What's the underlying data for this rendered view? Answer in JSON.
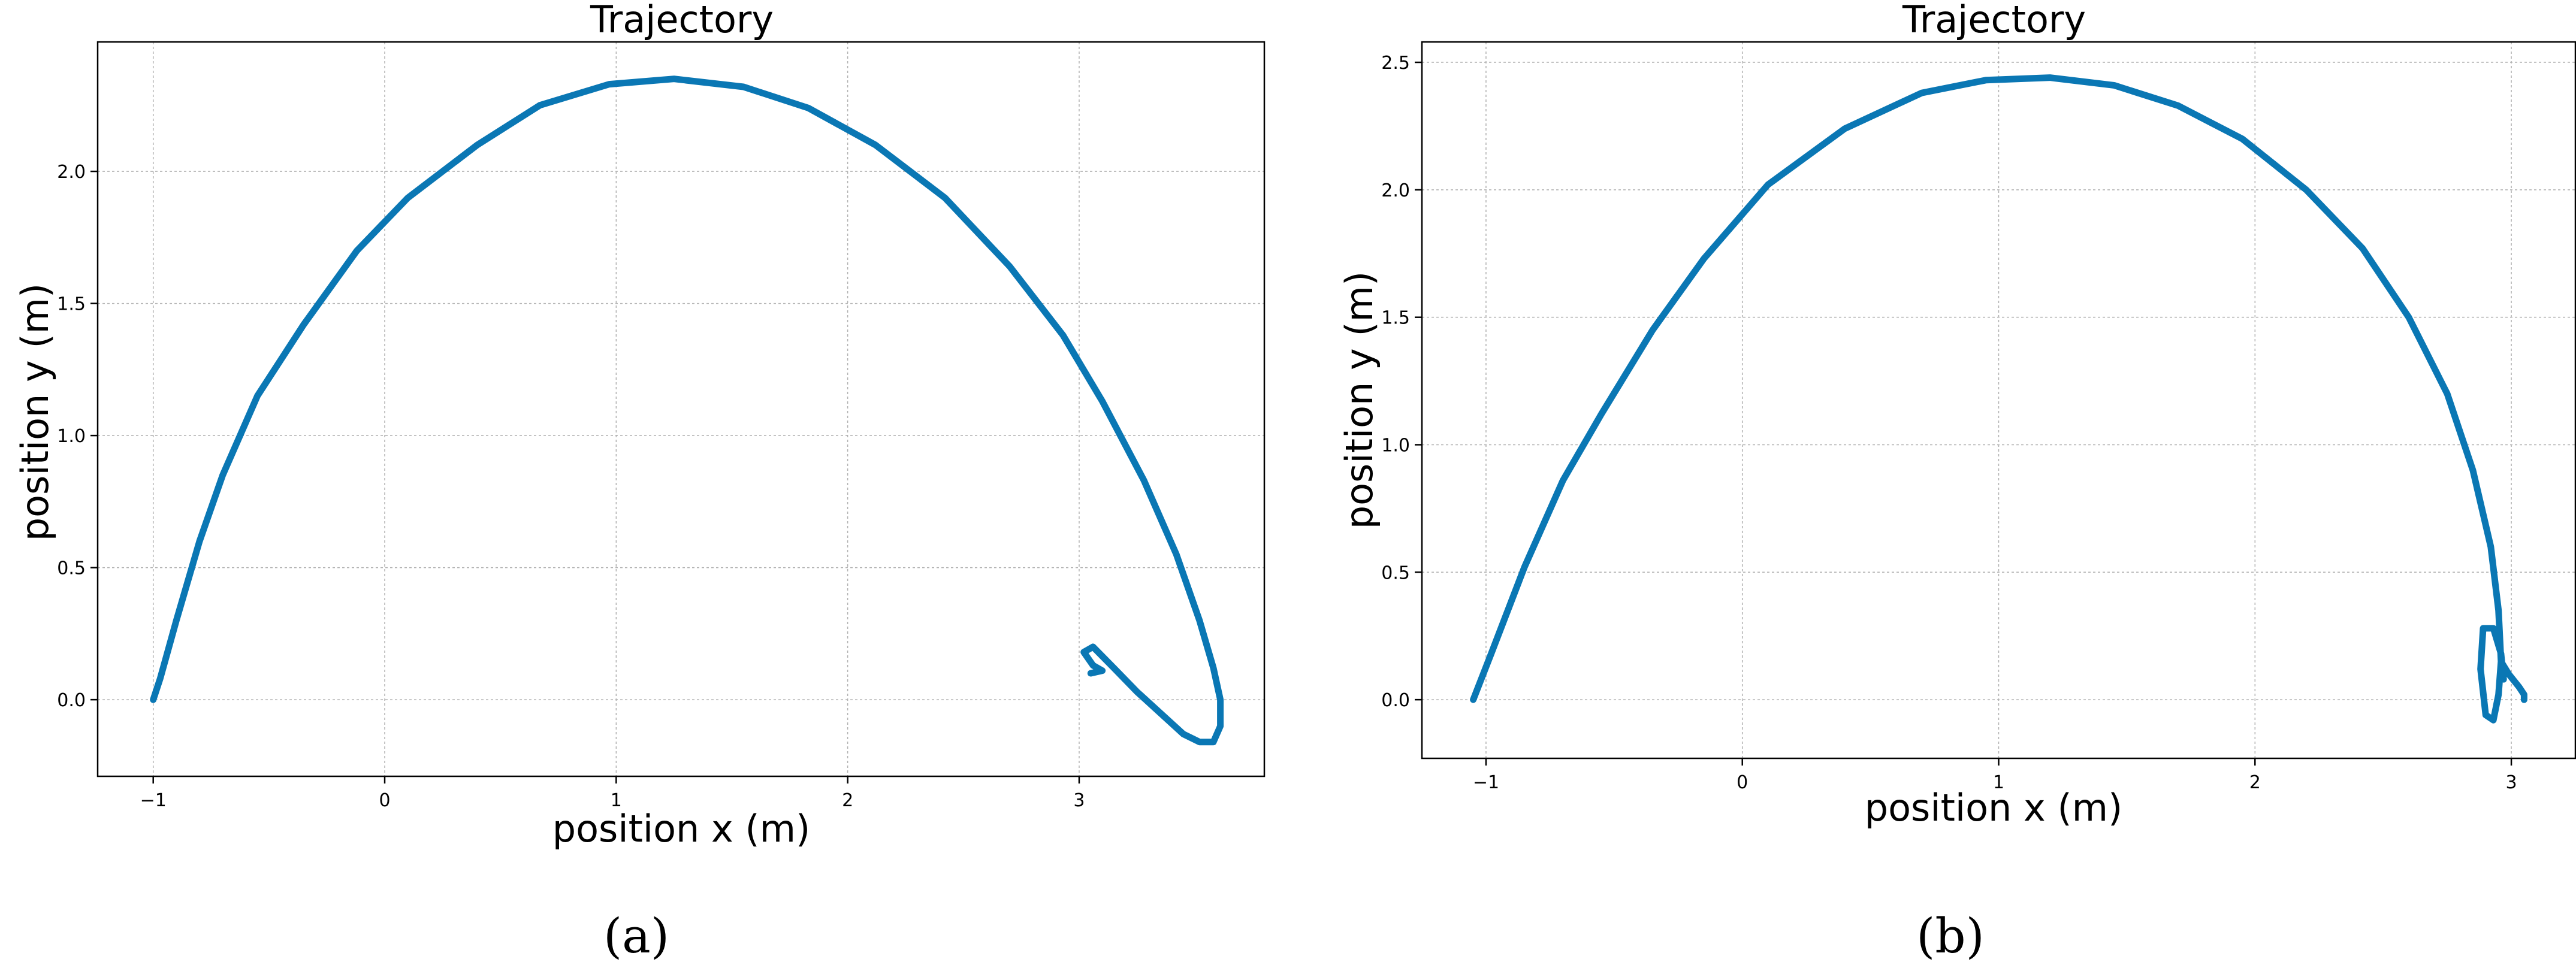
{
  "chart_data": [
    {
      "type": "line",
      "title": "Trajectory",
      "xlabel": "position x (m)",
      "ylabel": "position y (m)",
      "xlim": [
        -1.24,
        3.8
      ],
      "ylim": [
        -0.29,
        2.49
      ],
      "xticks": [
        -1,
        0,
        1,
        2,
        3
      ],
      "yticks": [
        0.0,
        0.5,
        1.0,
        1.5,
        2.0
      ],
      "xtick_labels": [
        "−1",
        "0",
        "1",
        "2",
        "3"
      ],
      "ytick_labels": [
        "0.0",
        "0.5",
        "1.0",
        "1.5",
        "2.0"
      ],
      "grid": true,
      "panel_label": "(a)",
      "series": [
        {
          "color": "#0a77b4",
          "x": [
            -1.0,
            -0.97,
            -0.9,
            -0.8,
            -0.7,
            -0.55,
            -0.35,
            -0.12,
            0.1,
            0.4,
            0.67,
            0.97,
            1.25,
            1.55,
            1.83,
            2.12,
            2.42,
            2.7,
            2.93,
            3.1,
            3.28,
            3.42,
            3.52,
            3.58,
            3.61,
            3.61,
            3.58,
            3.52,
            3.45,
            3.35,
            3.25,
            3.15,
            3.06,
            3.02,
            3.06,
            3.1,
            3.05
          ],
          "y": [
            0.0,
            0.08,
            0.3,
            0.6,
            0.85,
            1.15,
            1.42,
            1.7,
            1.9,
            2.1,
            2.25,
            2.33,
            2.35,
            2.32,
            2.24,
            2.1,
            1.9,
            1.64,
            1.38,
            1.13,
            0.83,
            0.55,
            0.3,
            0.12,
            0.0,
            -0.1,
            -0.16,
            -0.16,
            -0.13,
            -0.05,
            0.03,
            0.12,
            0.2,
            0.18,
            0.13,
            0.11,
            0.1
          ]
        }
      ]
    },
    {
      "type": "line",
      "title": "Trajectory",
      "xlabel": "position x (m)",
      "ylabel": "position y (m)",
      "xlim": [
        -1.25,
        3.25
      ],
      "ylim": [
        -0.23,
        2.58
      ],
      "xticks": [
        -1,
        0,
        1,
        2,
        3
      ],
      "yticks": [
        0.0,
        0.5,
        1.0,
        1.5,
        2.0,
        2.5
      ],
      "xtick_labels": [
        "−1",
        "0",
        "1",
        "2",
        "3"
      ],
      "ytick_labels": [
        "0.0",
        "0.5",
        "1.0",
        "1.5",
        "2.0",
        "2.5"
      ],
      "grid": true,
      "panel_label": "(b)",
      "series": [
        {
          "color": "#0a77b4",
          "x": [
            -1.05,
            -0.98,
            -0.85,
            -0.7,
            -0.55,
            -0.35,
            -0.15,
            0.1,
            0.4,
            0.7,
            0.95,
            1.2,
            1.45,
            1.7,
            1.95,
            2.2,
            2.42,
            2.6,
            2.75,
            2.85,
            2.92,
            2.95,
            2.96,
            2.95,
            2.93,
            2.9,
            2.88,
            2.89,
            2.93,
            2.96,
            2.97,
            2.96,
            2.99,
            3.03,
            3.05,
            3.05
          ],
          "y": [
            0.0,
            0.18,
            0.52,
            0.86,
            1.12,
            1.45,
            1.73,
            2.02,
            2.24,
            2.38,
            2.43,
            2.44,
            2.41,
            2.33,
            2.2,
            2.0,
            1.77,
            1.5,
            1.2,
            0.9,
            0.6,
            0.35,
            0.15,
            0.02,
            -0.08,
            -0.06,
            0.12,
            0.28,
            0.28,
            0.18,
            0.08,
            0.15,
            0.1,
            0.05,
            0.02,
            0.0
          ]
        }
      ]
    }
  ]
}
